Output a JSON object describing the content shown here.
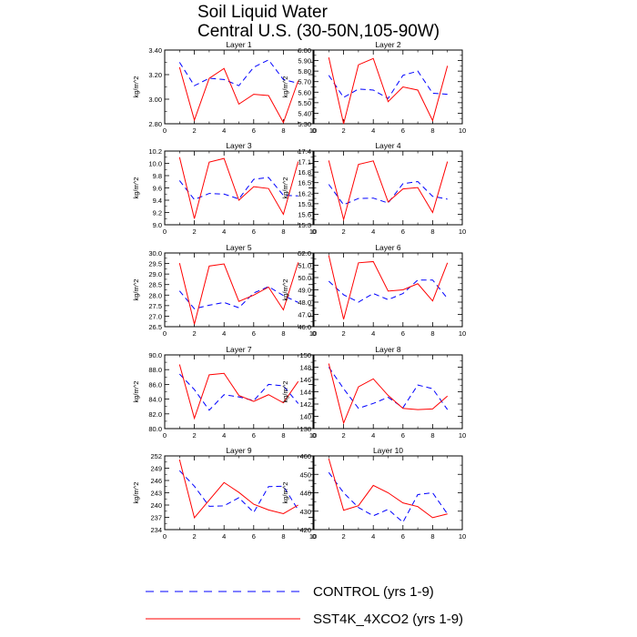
{
  "figure": {
    "title_line1": "Soil Liquid Water",
    "title_line2": "Central U.S. (30-50N,105-90W)"
  },
  "colors": {
    "control": "#0000ff",
    "experiment": "#ff0000",
    "axes": "#000000"
  },
  "legend": {
    "placement": "bottom",
    "items": [
      {
        "label": "CONTROL (yrs 1-9)",
        "style": "dashed",
        "color": "#0000ff"
      },
      {
        "label": "SST4K_4XCO2 (yrs 1-9)",
        "style": "solid",
        "color": "#ff0000"
      }
    ]
  },
  "chart_data": [
    {
      "type": "line",
      "title": "Layer 1",
      "ylabel": "kg/m^2",
      "xlim": [
        0,
        10
      ],
      "ylim": [
        2.8,
        3.4
      ],
      "xticks": [
        "0",
        "2",
        "4",
        "6",
        "8",
        "10"
      ],
      "yticks": [
        "2.80",
        "3.00",
        "3.20",
        "3.40"
      ],
      "x": [
        1,
        2,
        3,
        4,
        5,
        6,
        7,
        8,
        9
      ],
      "series": [
        {
          "name": "CONTROL (yrs 1-9)",
          "values": [
            3.3,
            3.11,
            3.17,
            3.16,
            3.11,
            3.26,
            3.32,
            3.16,
            3.13
          ]
        },
        {
          "name": "SST4K_4XCO2 (yrs 1-9)",
          "values": [
            3.26,
            2.83,
            3.17,
            3.25,
            2.96,
            3.04,
            3.03,
            2.81,
            3.15
          ]
        }
      ]
    },
    {
      "type": "line",
      "title": "Layer 2",
      "ylabel": "kg/m^2",
      "xlim": [
        0,
        10
      ],
      "ylim": [
        5.3,
        6.0
      ],
      "xticks": [
        "0",
        "2",
        "4",
        "6",
        "8",
        "10"
      ],
      "yticks": [
        "5.30",
        "5.40",
        "5.50",
        "5.60",
        "5.70",
        "5.80",
        "5.90",
        "6.00"
      ],
      "x": [
        1,
        2,
        3,
        4,
        5,
        6,
        7,
        8,
        9
      ],
      "series": [
        {
          "name": "CONTROL (yrs 1-9)",
          "values": [
            5.76,
            5.55,
            5.63,
            5.62,
            5.54,
            5.76,
            5.8,
            5.59,
            5.58
          ]
        },
        {
          "name": "SST4K_4XCO2 (yrs 1-9)",
          "values": [
            5.93,
            5.3,
            5.86,
            5.92,
            5.51,
            5.65,
            5.62,
            5.33,
            5.85
          ]
        }
      ]
    },
    {
      "type": "line",
      "title": "Layer 3",
      "ylabel": "kg/m^2",
      "xlim": [
        0,
        10
      ],
      "ylim": [
        9.0,
        10.2
      ],
      "xticks": [
        "0",
        "2",
        "4",
        "6",
        "8",
        "10"
      ],
      "yticks": [
        "9.0",
        "9.2",
        "9.4",
        "9.6",
        "9.8",
        "10.0",
        "10.2"
      ],
      "x": [
        1,
        2,
        3,
        4,
        5,
        6,
        7,
        8,
        9
      ],
      "series": [
        {
          "name": "CONTROL (yrs 1-9)",
          "values": [
            9.72,
            9.41,
            9.51,
            9.5,
            9.42,
            9.74,
            9.77,
            9.48,
            9.47
          ]
        },
        {
          "name": "SST4K_4XCO2 (yrs 1-9)",
          "values": [
            10.1,
            9.1,
            10.02,
            10.08,
            9.4,
            9.62,
            9.59,
            9.17,
            10.03
          ]
        }
      ]
    },
    {
      "type": "line",
      "title": "Layer 4",
      "ylabel": "kg/m^2",
      "xlim": [
        0,
        10
      ],
      "ylim": [
        15.3,
        17.4
      ],
      "xticks": [
        "0",
        "2",
        "4",
        "6",
        "8",
        "10"
      ],
      "yticks": [
        "15.3",
        "15.6",
        "15.9",
        "16.2",
        "16.5",
        "16.8",
        "17.1",
        "17.4"
      ],
      "x": [
        1,
        2,
        3,
        4,
        5,
        6,
        7,
        8,
        9
      ],
      "series": [
        {
          "name": "CONTROL (yrs 1-9)",
          "values": [
            16.45,
            15.87,
            16.05,
            16.06,
            15.92,
            16.47,
            16.53,
            16.11,
            16.03
          ]
        },
        {
          "name": "SST4K_4XCO2 (yrs 1-9)",
          "values": [
            17.13,
            15.45,
            17.02,
            17.12,
            15.95,
            16.32,
            16.36,
            15.65,
            17.1
          ]
        }
      ]
    },
    {
      "type": "line",
      "title": "Layer 5",
      "ylabel": "kg/m^2",
      "xlim": [
        0,
        10
      ],
      "ylim": [
        26.5,
        30.0
      ],
      "xticks": [
        "0",
        "2",
        "4",
        "6",
        "8",
        "10"
      ],
      "yticks": [
        "26.5",
        "27.0",
        "27.5",
        "28.0",
        "28.5",
        "29.0",
        "29.5",
        "30.0"
      ],
      "x": [
        1,
        2,
        3,
        4,
        5,
        6,
        7,
        8,
        9
      ],
      "series": [
        {
          "name": "CONTROL (yrs 1-9)",
          "values": [
            28.2,
            27.35,
            27.52,
            27.65,
            27.4,
            28.1,
            28.4,
            27.98,
            27.65
          ]
        },
        {
          "name": "SST4K_4XCO2 (yrs 1-9)",
          "values": [
            29.52,
            26.62,
            29.38,
            29.48,
            27.7,
            28.0,
            28.38,
            27.3,
            29.55
          ]
        }
      ]
    },
    {
      "type": "line",
      "title": "Layer 6",
      "ylabel": "kg/m^2",
      "xlim": [
        0,
        10
      ],
      "ylim": [
        46.0,
        52.0
      ],
      "xticks": [
        "0",
        "2",
        "4",
        "6",
        "8",
        "10"
      ],
      "yticks": [
        "46.0",
        "47.0",
        "48.0",
        "49.0",
        "50.0",
        "51.0",
        "52.0"
      ],
      "x": [
        1,
        2,
        3,
        4,
        5,
        6,
        7,
        8,
        9
      ],
      "series": [
        {
          "name": "CONTROL (yrs 1-9)",
          "values": [
            49.7,
            48.6,
            48.0,
            48.7,
            48.2,
            48.7,
            49.8,
            49.8,
            48.3
          ]
        },
        {
          "name": "SST4K_4XCO2 (yrs 1-9)",
          "values": [
            51.8,
            46.6,
            51.2,
            51.3,
            48.9,
            49.0,
            49.5,
            48.1,
            51.2
          ]
        }
      ]
    },
    {
      "type": "line",
      "title": "Layer 7",
      "ylabel": "kg/m^2",
      "xlim": [
        0,
        10
      ],
      "ylim": [
        80.0,
        90.0
      ],
      "xticks": [
        "0",
        "2",
        "4",
        "6",
        "8",
        "10"
      ],
      "yticks": [
        "80.0",
        "82.0",
        "84.0",
        "86.0",
        "88.0",
        "90.0"
      ],
      "x": [
        1,
        2,
        3,
        4,
        5,
        6,
        7,
        8,
        9
      ],
      "series": [
        {
          "name": "CONTROL (yrs 1-9)",
          "values": [
            87.4,
            85.3,
            82.5,
            84.6,
            84.3,
            83.8,
            86.0,
            85.8,
            83.4
          ]
        },
        {
          "name": "SST4K_4XCO2 (yrs 1-9)",
          "values": [
            88.7,
            81.4,
            87.3,
            87.5,
            84.5,
            83.7,
            84.6,
            83.5,
            86.4
          ]
        }
      ]
    },
    {
      "type": "line",
      "title": "Layer 8",
      "ylabel": "kg/m^2",
      "xlim": [
        0,
        10
      ],
      "ylim": [
        138,
        150
      ],
      "xticks": [
        "0",
        "2",
        "4",
        "6",
        "8",
        "10"
      ],
      "yticks": [
        "138",
        "140",
        "142",
        "144",
        "146",
        "148",
        "150"
      ],
      "x": [
        1,
        2,
        3,
        4,
        5,
        6,
        7,
        8,
        9
      ],
      "series": [
        {
          "name": "CONTROL (yrs 1-9)",
          "values": [
            148.0,
            144.5,
            141.3,
            142.1,
            143.1,
            141.4,
            145.1,
            144.5,
            141.1
          ]
        },
        {
          "name": "SST4K_4XCO2 (yrs 1-9)",
          "values": [
            148.6,
            138.9,
            144.8,
            146.1,
            143.4,
            141.3,
            141.1,
            141.2,
            143.3
          ]
        }
      ]
    },
    {
      "type": "line",
      "title": "Layer 9",
      "ylabel": "kg/m^2",
      "xlim": [
        0,
        10
      ],
      "ylim": [
        234,
        252
      ],
      "xticks": [
        "0",
        "2",
        "4",
        "6",
        "8",
        "10"
      ],
      "yticks": [
        "234",
        "237",
        "240",
        "243",
        "246",
        "249",
        "252"
      ],
      "x": [
        1,
        2,
        3,
        4,
        5,
        6,
        7,
        8,
        9
      ],
      "series": [
        {
          "name": "CONTROL (yrs 1-9)",
          "values": [
            248.4,
            244.6,
            239.7,
            239.8,
            241.8,
            238.2,
            244.5,
            244.6,
            238.8
          ]
        },
        {
          "name": "SST4K_4XCO2 (yrs 1-9)",
          "values": [
            251.1,
            236.9,
            241.2,
            245.5,
            243.1,
            240.2,
            238.8,
            237.9,
            240.0
          ]
        }
      ]
    },
    {
      "type": "line",
      "title": "Layer 10",
      "ylabel": "kg/m^2",
      "xlim": [
        0,
        10
      ],
      "ylim": [
        420,
        460
      ],
      "xticks": [
        "0",
        "2",
        "4",
        "6",
        "8",
        "10"
      ],
      "yticks": [
        "420",
        "430",
        "440",
        "450",
        "460"
      ],
      "x": [
        1,
        2,
        3,
        4,
        5,
        6,
        7,
        8,
        9
      ],
      "series": [
        {
          "name": "CONTROL (yrs 1-9)",
          "values": [
            451,
            440,
            432,
            427.5,
            431,
            424,
            439,
            440,
            428.5
          ]
        },
        {
          "name": "SST4K_4XCO2 (yrs 1-9)",
          "values": [
            458.5,
            430.5,
            433,
            444,
            440,
            434.5,
            432.5,
            426.5,
            428.5
          ]
        }
      ]
    }
  ]
}
